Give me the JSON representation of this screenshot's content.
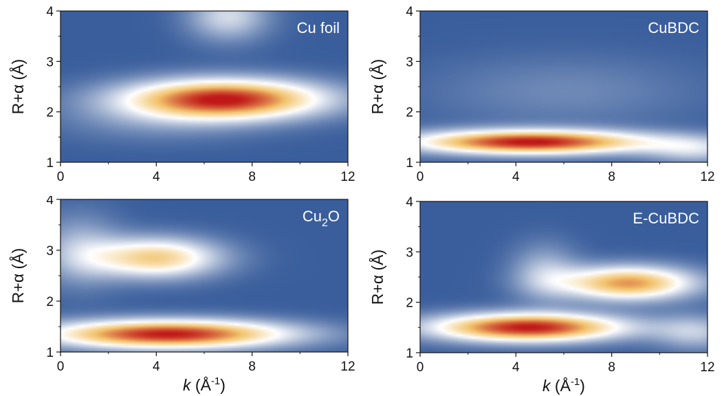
{
  "chart_data": [
    {
      "type": "heatmap",
      "title": "Cu foil",
      "xlabel": "",
      "ylabel": "R+α (Å)",
      "xlim": [
        0,
        12
      ],
      "ylim": [
        1,
        4
      ],
      "xticks": [
        "0",
        "4",
        "8",
        "12"
      ],
      "yticks": [
        "1",
        "2",
        "3",
        "4"
      ],
      "colormap": [
        "#3a5e9c",
        "#ffffff",
        "#f2c36b",
        "#c01818"
      ],
      "blobs": [
        {
          "k": 6.8,
          "r": 2.25,
          "amplitude": 1.0,
          "sigma_k": 3.0,
          "sigma_r": 0.28
        },
        {
          "k": 7.0,
          "r": 3.9,
          "amplitude": 0.35,
          "sigma_k": 1.2,
          "sigma_r": 0.35
        },
        {
          "k": 4.0,
          "r": 1.8,
          "amplitude": 0.12,
          "sigma_k": 3.0,
          "sigma_r": 0.3
        }
      ]
    },
    {
      "type": "heatmap",
      "title": "CuBDC",
      "xlabel": "",
      "ylabel": "R+α (Å)",
      "xlim": [
        0,
        12
      ],
      "ylim": [
        1,
        4
      ],
      "xticks": [
        "0",
        "4",
        "8",
        "12"
      ],
      "yticks": [
        "1",
        "2",
        "3",
        "4"
      ],
      "colormap": [
        "#3a5e9c",
        "#ffffff",
        "#f2c36b",
        "#c01818"
      ],
      "blobs": [
        {
          "k": 4.6,
          "r": 1.4,
          "amplitude": 1.0,
          "sigma_k": 3.5,
          "sigma_r": 0.17
        },
        {
          "k": 11.5,
          "r": 1.25,
          "amplitude": 0.3,
          "sigma_k": 1.5,
          "sigma_r": 0.2
        },
        {
          "k": 6.0,
          "r": 2.4,
          "amplitude": 0.12,
          "sigma_k": 4.0,
          "sigma_r": 0.5
        }
      ]
    },
    {
      "type": "heatmap",
      "title": "Cu2O",
      "xlabel": "k (Å-1)",
      "ylabel": "R+α (Å)",
      "xlim": [
        0,
        12
      ],
      "ylim": [
        1,
        4
      ],
      "xticks": [
        "0",
        "4",
        "8",
        "12"
      ],
      "yticks": [
        "1",
        "2",
        "3",
        "4"
      ],
      "colormap": [
        "#3a5e9c",
        "#ffffff",
        "#f2c36b",
        "#c01818"
      ],
      "blobs": [
        {
          "k": 4.5,
          "r": 1.35,
          "amplitude": 1.0,
          "sigma_k": 3.6,
          "sigma_r": 0.2
        },
        {
          "k": 4.0,
          "r": 2.85,
          "amplitude": 0.65,
          "sigma_k": 1.9,
          "sigma_r": 0.28
        },
        {
          "k": 0.8,
          "r": 3.0,
          "amplitude": 0.25,
          "sigma_k": 1.2,
          "sigma_r": 0.5
        }
      ]
    },
    {
      "type": "heatmap",
      "title": "E-CuBDC",
      "xlabel": "k (Å-1)",
      "ylabel": "R+α (Å)",
      "xlim": [
        0,
        12
      ],
      "ylim": [
        1,
        4
      ],
      "xticks": [
        "0",
        "4",
        "8",
        "12"
      ],
      "yticks": [
        "1",
        "2",
        "3",
        "4"
      ],
      "colormap": [
        "#3a5e9c",
        "#ffffff",
        "#f2c36b",
        "#c01818"
      ],
      "blobs": [
        {
          "k": 4.5,
          "r": 1.5,
          "amplitude": 1.0,
          "sigma_k": 2.9,
          "sigma_r": 0.2
        },
        {
          "k": 8.7,
          "r": 2.38,
          "amplitude": 0.78,
          "sigma_k": 2.0,
          "sigma_r": 0.24
        },
        {
          "k": 5.2,
          "r": 2.6,
          "amplitude": 0.25,
          "sigma_k": 1.0,
          "sigma_r": 0.4
        },
        {
          "k": 11.5,
          "r": 1.4,
          "amplitude": 0.28,
          "sigma_k": 1.2,
          "sigma_r": 0.25
        }
      ]
    }
  ]
}
